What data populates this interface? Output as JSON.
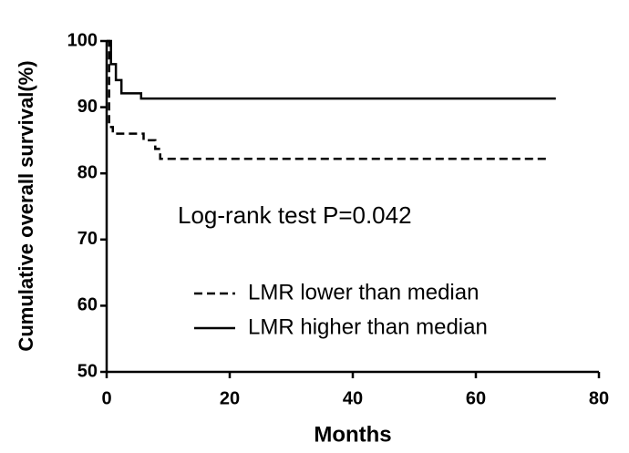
{
  "chart_data": {
    "type": "step",
    "annotation": "Log-rank test P=0.042",
    "x_label": "Months",
    "y_label": "Cumulative overall survival(%)",
    "xlim": [
      0,
      80
    ],
    "xticks": [
      0,
      20,
      40,
      60,
      80
    ],
    "ylim": [
      50,
      100
    ],
    "yticks": [
      50,
      60,
      70,
      80,
      90,
      100
    ],
    "grid": false,
    "series": [
      {
        "name": "LMR lower than median",
        "color": "#000000",
        "dash": true,
        "x": [
          0,
          0.4,
          1.0,
          6.0,
          7.9,
          8.7,
          71.5
        ],
        "values": [
          100,
          87,
          86,
          85,
          83.7,
          82.2,
          82.2
        ]
      },
      {
        "name": "LMR higher than median",
        "color": "#000000",
        "dash": false,
        "x": [
          0,
          0.7,
          1.5,
          2.4,
          5.6,
          73
        ],
        "values": [
          100,
          96.5,
          94.1,
          92.1,
          91.3,
          91.3
        ]
      }
    ]
  }
}
